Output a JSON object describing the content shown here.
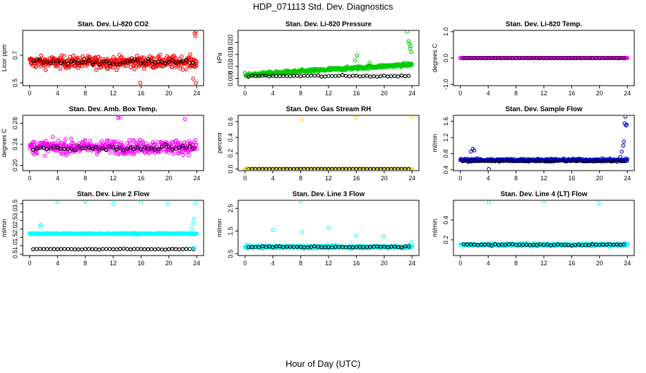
{
  "page": {
    "title": "HDP_071113  Std. Dev. Diagnostics",
    "x_axis_title": "Hour of Day (UTC)"
  },
  "chart_data": [
    {
      "type": "scatter",
      "title": "Stan. Dev. Li-820 CO2",
      "ylabel": "Licor ppm",
      "color": "#ff0000",
      "xlim": [
        0,
        24
      ],
      "ylim": [
        0.48,
        0.88
      ],
      "xticks": [
        0,
        4,
        8,
        12,
        16,
        20,
        24
      ],
      "xtick_labels": [
        "0",
        "4",
        "8",
        "12",
        "16",
        "20",
        "24"
      ],
      "yticks": [
        0.5,
        0.7
      ],
      "ytick_labels": [
        "0.5",
        "0.7"
      ],
      "pattern": {
        "base": 0.65,
        "spread": 0.075,
        "hourly_mean": 0.65
      },
      "outliers": [
        [
          23.7,
          0.86
        ],
        [
          23.8,
          0.84
        ],
        [
          23.9,
          0.87
        ],
        [
          15.9,
          0.5
        ],
        [
          23.5,
          0.53
        ],
        [
          23.9,
          0.5
        ]
      ]
    },
    {
      "type": "scatter",
      "title": "Stan. Dev. Li-820 Pressure",
      "ylabel": "kPa",
      "color": "#00cc00",
      "xlim": [
        0,
        24
      ],
      "ylim": [
        0.002,
        0.025
      ],
      "xticks": [
        0,
        4,
        8,
        12,
        16,
        20,
        24
      ],
      "xtick_labels": [
        "0",
        "4",
        "8",
        "12",
        "16",
        "20",
        "24"
      ],
      "yticks": [
        0.005,
        0.01,
        0.015,
        0.02
      ],
      "ytick_labels": [
        "0.005",
        "0.010",
        "0.015",
        "0.020"
      ],
      "pattern": {
        "base": 0.0065,
        "trend": 0.00018,
        "spread": 0.0012,
        "hourly_mean": 0.006
      },
      "outliers": [
        [
          8.1,
          0.0085
        ],
        [
          12.2,
          0.0095
        ],
        [
          15.8,
          0.0125
        ],
        [
          16.1,
          0.0145
        ],
        [
          17.9,
          0.0115
        ],
        [
          23.3,
          0.0245
        ],
        [
          23.5,
          0.0205
        ],
        [
          23.6,
          0.0195
        ],
        [
          23.7,
          0.0175
        ],
        [
          23.8,
          0.0185
        ],
        [
          23.9,
          0.016
        ]
      ]
    },
    {
      "type": "scatter",
      "title": "Stan. Dev. Li-820 Temp.",
      "ylabel": "degrees C",
      "color": "#ff00ff",
      "xlim": [
        0,
        24
      ],
      "ylim": [
        -1.05,
        1.05
      ],
      "xticks": [
        0,
        4,
        8,
        12,
        16,
        20,
        24
      ],
      "xtick_labels": [
        "0",
        "4",
        "8",
        "12",
        "16",
        "20",
        "24"
      ],
      "yticks": [
        -1.0,
        0.0,
        1.0
      ],
      "ytick_labels": [
        "-1.0",
        "0.0",
        "1.0"
      ],
      "pattern": {
        "base": 0.0,
        "spread": 0.0,
        "hourly_mean": 0.0
      },
      "outliers": []
    },
    {
      "type": "scatter",
      "title": "Stan. Dev. Amb. Box Temp.",
      "ylabel": "degrees C",
      "color": "#ff00ff",
      "xlim": [
        0,
        24
      ],
      "ylim": [
        0.19,
        0.295
      ],
      "xticks": [
        0,
        4,
        8,
        12,
        16,
        20,
        24
      ],
      "xtick_labels": [
        "0",
        "4",
        "8",
        "12",
        "16",
        "20",
        "24"
      ],
      "yticks": [
        0.2,
        0.24,
        0.28
      ],
      "ytick_labels": [
        "0.20",
        "0.24",
        "0.28"
      ],
      "pattern": {
        "base": 0.235,
        "spread": 0.022,
        "hourly_mean": 0.232
      },
      "outliers": [
        [
          12.7,
          0.29
        ],
        [
          13.0,
          0.291
        ],
        [
          22.3,
          0.288
        ]
      ]
    },
    {
      "type": "scatter",
      "title": "Stan. Dev. Gas Stream RH",
      "ylabel": "percent",
      "color": "#ffdd00",
      "xlim": [
        0,
        24
      ],
      "ylim": [
        -0.02,
        0.68
      ],
      "xticks": [
        0,
        4,
        8,
        12,
        16,
        20,
        24
      ],
      "xtick_labels": [
        "0",
        "4",
        "8",
        "12",
        "16",
        "20",
        "24"
      ],
      "yticks": [
        0.0,
        0.2,
        0.4,
        0.6
      ],
      "ytick_labels": [
        "0.0",
        "0.2",
        "0.4",
        "0.6"
      ],
      "pattern": {
        "base": 0.0,
        "spread": 0.0,
        "hourly_mean": 0.0
      },
      "outliers": [
        [
          8.1,
          0.62
        ],
        [
          16.0,
          0.65
        ],
        [
          23.9,
          0.66
        ],
        [
          0.2,
          0.01
        ]
      ]
    },
    {
      "type": "scatter",
      "title": "Stan. Dev. Sample Flow",
      "ylabel": "ml/min",
      "color": "#0000cc",
      "xlim": [
        0,
        24
      ],
      "ylim": [
        0.38,
        1.75
      ],
      "xticks": [
        0,
        4,
        8,
        12,
        16,
        20,
        24
      ],
      "xtick_labels": [
        "0",
        "4",
        "8",
        "12",
        "16",
        "20",
        "24"
      ],
      "yticks": [
        0.4,
        0.8,
        1.2,
        1.6
      ],
      "ytick_labels": [
        "0.4",
        "0.8",
        "1.2",
        "1.6"
      ],
      "pattern": {
        "base": 0.64,
        "spread": 0.06,
        "hourly_mean": 0.62
      },
      "outliers": [
        [
          1.5,
          0.85
        ],
        [
          1.8,
          0.92
        ],
        [
          2.0,
          0.88
        ],
        [
          4.1,
          0.42
        ],
        [
          23.0,
          0.72
        ],
        [
          23.2,
          0.85
        ],
        [
          23.4,
          1.0
        ],
        [
          23.5,
          1.1
        ],
        [
          23.6,
          1.55
        ],
        [
          23.7,
          1.72
        ],
        [
          23.8,
          1.5
        ],
        [
          23.9,
          1.52
        ]
      ]
    },
    {
      "type": "scatter",
      "title": "Stan. Dev. Line 2 Flow",
      "ylabel": "ml/min",
      "color": "#00ffff",
      "xlim": [
        0,
        24
      ],
      "ylim": [
        0.42,
        3.7
      ],
      "xticks": [
        0,
        4,
        8,
        12,
        16,
        20,
        24
      ],
      "xtick_labels": [
        "0",
        "4",
        "8",
        "12",
        "16",
        "20",
        "24"
      ],
      "yticks": [
        0.5,
        1.0,
        1.5,
        2.0,
        2.5,
        3.0,
        3.5
      ],
      "ytick_labels": [
        "0.5",
        "1.0",
        "1.5",
        "2.0",
        "2.5",
        "3.0",
        "3.5"
      ],
      "pattern": {
        "base": 1.72,
        "spread": 0.06,
        "hourly_mean": 0.8
      },
      "outliers": [
        [
          1.5,
          2.15
        ],
        [
          1.6,
          2.25
        ],
        [
          4.0,
          3.6
        ],
        [
          8.0,
          3.62
        ],
        [
          12.0,
          3.5
        ],
        [
          16.0,
          3.6
        ],
        [
          19.9,
          3.5
        ],
        [
          23.3,
          2.0
        ],
        [
          23.5,
          2.3
        ],
        [
          23.6,
          2.6
        ],
        [
          23.8,
          3.5
        ],
        [
          23.4,
          0.85
        ],
        [
          23.7,
          0.9
        ]
      ]
    },
    {
      "type": "scatter",
      "title": "Stan. Dev. Line 3 Flow",
      "ylabel": "ml/min",
      "color": "#00ffff",
      "xlim": [
        0,
        24
      ],
      "ylim": [
        0.42,
        2.85
      ],
      "xticks": [
        0,
        4,
        8,
        12,
        16,
        20,
        24
      ],
      "xtick_labels": [
        "0",
        "4",
        "8",
        "12",
        "16",
        "20",
        "24"
      ],
      "yticks": [
        0.5,
        1.5,
        2.5
      ],
      "ytick_labels": [
        "0.5",
        "1.5",
        "2.5"
      ],
      "pattern": {
        "base": 0.8,
        "spread": 0.11,
        "hourly_mean": 0.8
      },
      "outliers": [
        [
          4.0,
          1.55
        ],
        [
          8.0,
          2.8
        ],
        [
          8.2,
          1.45
        ],
        [
          12.0,
          1.65
        ],
        [
          16.0,
          1.3
        ],
        [
          19.9,
          1.25
        ],
        [
          23.9,
          1.0
        ]
      ]
    },
    {
      "type": "scatter",
      "title": "Stan. Dev. Line 4 (LT) Flow",
      "ylabel": "ml/min",
      "color": "#00ffff",
      "xlim": [
        0,
        24
      ],
      "ylim": [
        0.04,
        0.6
      ],
      "xticks": [
        0,
        4,
        8,
        12,
        16,
        20,
        24
      ],
      "xtick_labels": [
        "0",
        "4",
        "8",
        "12",
        "16",
        "20",
        "24"
      ],
      "yticks": [
        0.2,
        0.4
      ],
      "ytick_labels": [
        "0.2",
        "0.4"
      ],
      "pattern": {
        "base": 0.15,
        "spread": 0.025,
        "hourly_mean": 0.15
      },
      "outliers": [
        [
          4.1,
          0.58
        ],
        [
          12.0,
          0.59
        ],
        [
          19.9,
          0.57
        ]
      ]
    }
  ]
}
